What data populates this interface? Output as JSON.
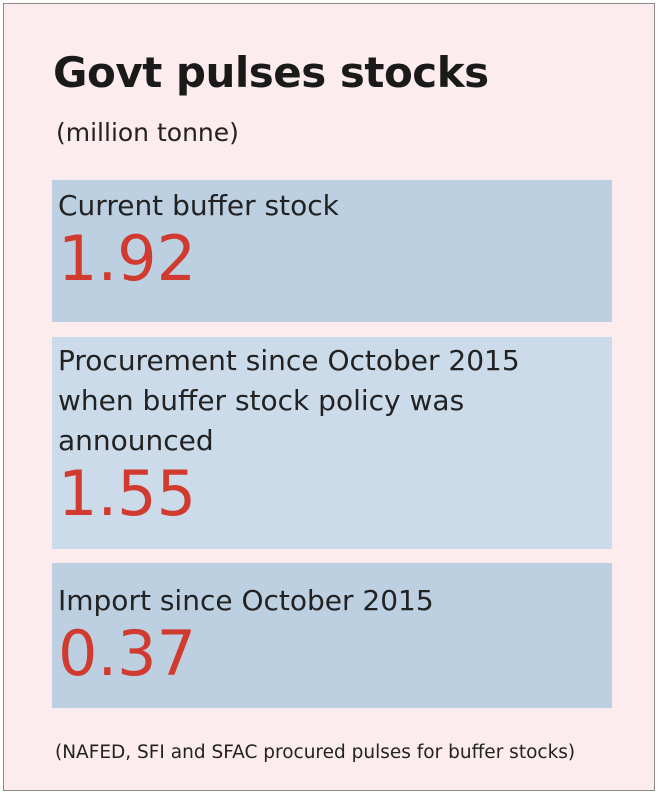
{
  "chart_data": {
    "type": "table",
    "title": "Govt pulses stocks",
    "subtitle": "(million tonne)",
    "items": [
      {
        "label": "Current buffer stock",
        "value": "1.92"
      },
      {
        "label": "Procurement since October 2015\nwhen buffer stock policy was\nannounced",
        "value": "1.55"
      },
      {
        "label": "Import since October 2015",
        "value": "0.37"
      }
    ],
    "footnote": "(NAFED, SFI and SFAC procured pulses for buffer stocks)"
  },
  "colors": {
    "background": "#fcecee",
    "panel_dark": "#bcd0e2",
    "panel_light": "#cbdbea",
    "value_red": "#d13a2e",
    "text": "#1a1a1a"
  }
}
